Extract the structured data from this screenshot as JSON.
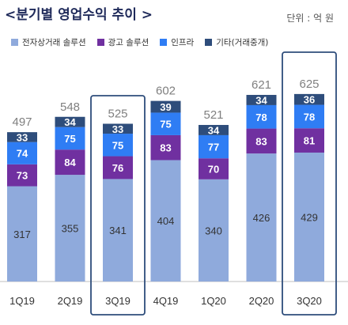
{
  "header": {
    "title": "<분기별 영업수익 추이 >",
    "unit": "단위 : 억 원"
  },
  "colors": {
    "ecommerce": "#8faadc",
    "advertising": "#7030a0",
    "infra": "#2f7df4",
    "other": "#2e4d7b",
    "highlight": "#2e4d7b"
  },
  "legend": [
    {
      "key": "ecommerce",
      "label": "전자상거래 솔루션"
    },
    {
      "key": "advertising",
      "label": "광고 솔루션"
    },
    {
      "key": "infra",
      "label": "인프라"
    },
    {
      "key": "other",
      "label": "기타(거래중개)"
    }
  ],
  "chart_data": {
    "type": "bar",
    "stacked": true,
    "categories": [
      "1Q19",
      "2Q19",
      "3Q19",
      "4Q19",
      "1Q20",
      "2Q20",
      "3Q20"
    ],
    "series": [
      {
        "name": "전자상거래 솔루션",
        "key": "ecommerce",
        "values": [
          317,
          355,
          341,
          404,
          340,
          426,
          429
        ]
      },
      {
        "name": "광고 솔루션",
        "key": "advertising",
        "values": [
          73,
          84,
          76,
          83,
          70,
          83,
          81
        ]
      },
      {
        "name": "인프라",
        "key": "infra",
        "values": [
          74,
          75,
          75,
          75,
          77,
          78,
          78
        ]
      },
      {
        "name": "기타(거래중개)",
        "key": "other",
        "values": [
          33,
          34,
          33,
          39,
          34,
          34,
          36
        ]
      }
    ],
    "totals": [
      497,
      548,
      525,
      602,
      521,
      621,
      625
    ],
    "highlighted": [
      "3Q19",
      "3Q20"
    ],
    "legend_position": "top",
    "grid": false
  }
}
